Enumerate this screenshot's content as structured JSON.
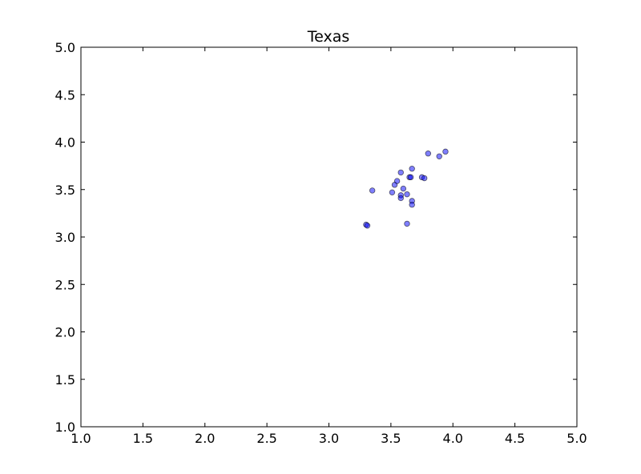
{
  "chart_data": {
    "type": "scatter",
    "title": "Texas",
    "xlabel": "",
    "ylabel": "",
    "xlim": [
      1.0,
      5.0
    ],
    "ylim": [
      1.0,
      5.0
    ],
    "xticks": [
      "1.0",
      "1.5",
      "2.0",
      "2.5",
      "3.0",
      "3.5",
      "4.0",
      "4.5",
      "5.0"
    ],
    "yticks": [
      "1.0",
      "1.5",
      "2.0",
      "2.5",
      "3.0",
      "3.5",
      "4.0",
      "4.5",
      "5.0"
    ],
    "grid": false,
    "marker_color": "#0000ff",
    "marker_alpha": 0.5,
    "series": [
      {
        "x": [
          3.3,
          3.31,
          3.35,
          3.51,
          3.53,
          3.55,
          3.58,
          3.58,
          3.58,
          3.6,
          3.63,
          3.63,
          3.65,
          3.66,
          3.67,
          3.67,
          3.67,
          3.75,
          3.77,
          3.8,
          3.89,
          3.94
        ],
        "y": [
          3.13,
          3.12,
          3.49,
          3.47,
          3.55,
          3.59,
          3.68,
          3.44,
          3.41,
          3.51,
          3.45,
          3.14,
          3.63,
          3.63,
          3.72,
          3.38,
          3.34,
          3.63,
          3.62,
          3.88,
          3.85,
          3.9
        ]
      }
    ]
  }
}
